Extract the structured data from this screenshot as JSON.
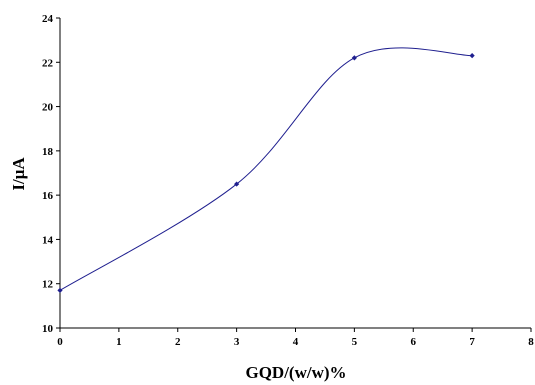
{
  "chart_data": {
    "type": "line",
    "smoothed": true,
    "title": "",
    "xlabel": "GQD/(w/w)%",
    "ylabel": "I/μA",
    "xlim": [
      0,
      8
    ],
    "ylim": [
      10,
      24
    ],
    "xticks": [
      0,
      1,
      2,
      3,
      4,
      5,
      6,
      7,
      8
    ],
    "yticks": [
      10,
      12,
      14,
      16,
      18,
      20,
      22,
      24
    ],
    "grid": false,
    "legend": "none",
    "series": [
      {
        "x": [
          0,
          3,
          5,
          7
        ],
        "y": [
          11.7,
          16.5,
          22.2,
          22.3
        ],
        "color": "#1f1f8f",
        "marker": "diamond"
      }
    ]
  }
}
